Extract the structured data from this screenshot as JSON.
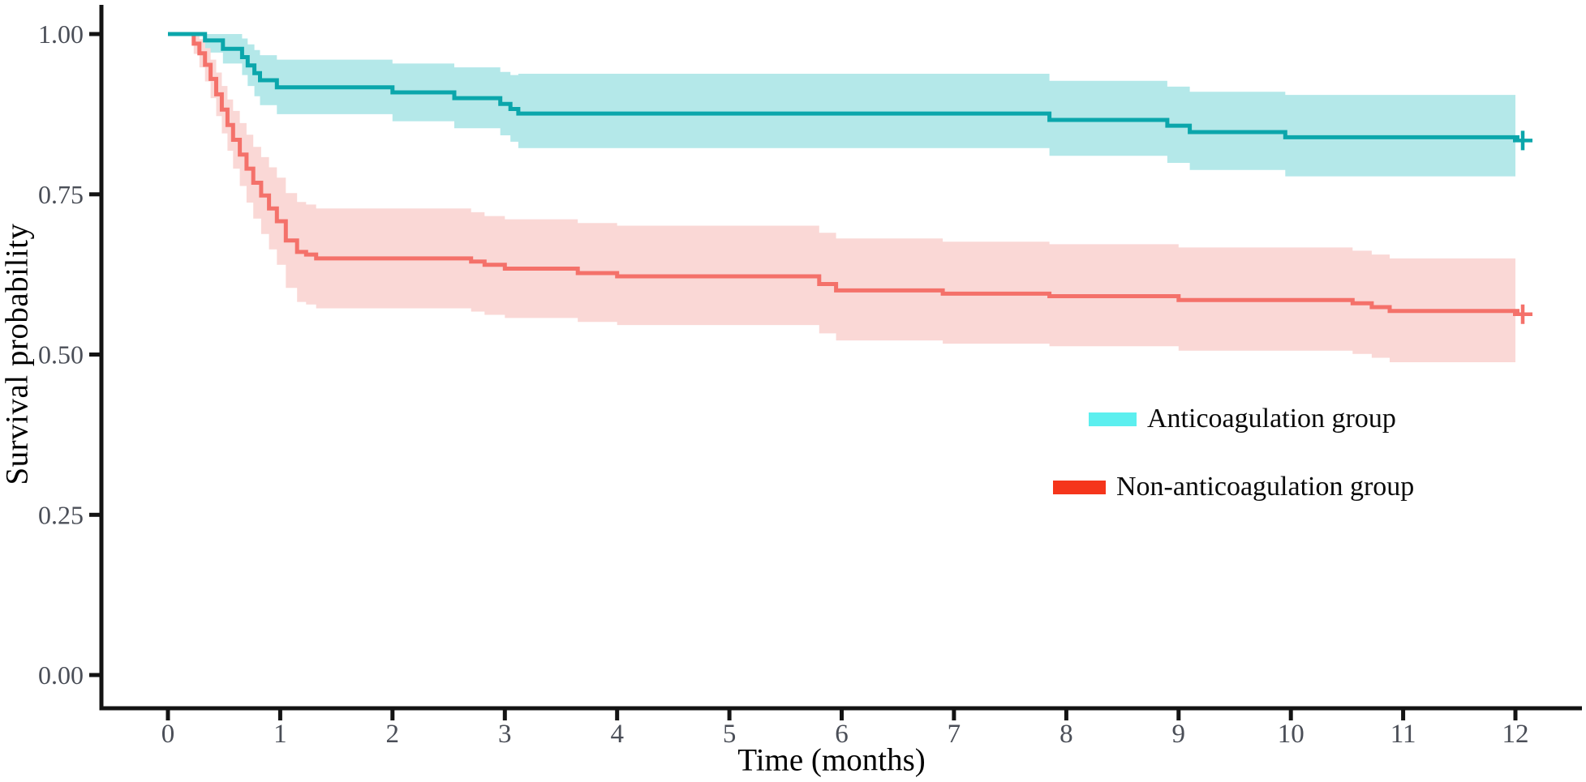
{
  "chart_data": {
    "type": "line",
    "subtype": "kaplan_meier_step_with_confidence_bands",
    "title": "",
    "xlabel": "Time  (months)",
    "ylabel": "Survival probability",
    "xlim": [
      0,
      12
    ],
    "ylim": [
      0,
      1
    ],
    "grid": false,
    "x_axis": {
      "title": "Time  (months)",
      "ticks": [
        {
          "value": 0,
          "label": "0"
        },
        {
          "value": 1,
          "label": "1"
        },
        {
          "value": 2,
          "label": "2"
        },
        {
          "value": 3,
          "label": "3"
        },
        {
          "value": 4,
          "label": "4"
        },
        {
          "value": 5,
          "label": "5"
        },
        {
          "value": 6,
          "label": "6"
        },
        {
          "value": 7,
          "label": "7"
        },
        {
          "value": 8,
          "label": "8"
        },
        {
          "value": 9,
          "label": "9"
        },
        {
          "value": 10,
          "label": "10"
        },
        {
          "value": 11,
          "label": "11"
        },
        {
          "value": 12,
          "label": "12"
        }
      ]
    },
    "y_axis": {
      "title": "Survival probability",
      "ticks": [
        {
          "value": 1.0,
          "label": "1.00"
        },
        {
          "value": 0.75,
          "label": "0.75"
        },
        {
          "value": 0.5,
          "label": "0.50"
        },
        {
          "value": 0.25,
          "label": "0.25"
        },
        {
          "value": 0.0,
          "label": "0.00"
        }
      ]
    },
    "legend": {
      "position": "middle-right",
      "entries": [
        {
          "label": "Anticoagulation group",
          "swatch_color": "#5cefef",
          "series": "anticoagulation"
        },
        {
          "label": "Non-anticoagulation group",
          "swatch_color": "#f5351b",
          "series": "non_anticoagulation"
        }
      ]
    },
    "colors": {
      "axis_line": "#131313",
      "tick_label": "#4a4e57",
      "axis_title": "#000000"
    },
    "points_format": [
      "time_months",
      "survival",
      "ci_lower",
      "ci_upper"
    ],
    "series": [
      {
        "id": "anticoagulation",
        "name": "Anticoagulation group",
        "line_color": "#0ba6ab",
        "band_color": "#b4e8e9",
        "censored_at_end": true,
        "end_survival": 0.84,
        "points": [
          [
            0.0,
            1.0,
            1.0,
            1.0
          ],
          [
            0.33,
            0.99,
            0.971,
            1.0
          ],
          [
            0.49,
            0.977,
            0.954,
            1.0
          ],
          [
            0.66,
            0.964,
            0.936,
            0.993
          ],
          [
            0.71,
            0.951,
            0.919,
            0.984
          ],
          [
            0.77,
            0.939,
            0.903,
            0.975
          ],
          [
            0.82,
            0.928,
            0.889,
            0.967
          ],
          [
            0.97,
            0.917,
            0.875,
            0.96
          ],
          [
            2.0,
            0.909,
            0.864,
            0.954
          ],
          [
            2.55,
            0.9,
            0.853,
            0.948
          ],
          [
            2.96,
            0.891,
            0.842,
            0.941
          ],
          [
            3.05,
            0.883,
            0.832,
            0.936
          ],
          [
            3.12,
            0.876,
            0.822,
            0.938
          ],
          [
            7.85,
            0.866,
            0.81,
            0.927
          ],
          [
            8.9,
            0.857,
            0.799,
            0.918
          ],
          [
            9.1,
            0.847,
            0.788,
            0.91
          ],
          [
            9.95,
            0.839,
            0.778,
            0.905
          ],
          [
            12.0,
            0.839,
            0.778,
            0.905
          ]
        ]
      },
      {
        "id": "non_anticoagulation",
        "name": "Non-anticoagulation group",
        "line_color": "#f4716a",
        "band_color": "#fad8d6",
        "censored_at_end": true,
        "end_survival": 0.57,
        "points": [
          [
            0.0,
            1.0,
            1.0,
            1.0
          ],
          [
            0.19,
            1.0,
            1.0,
            1.0
          ],
          [
            0.23,
            0.985,
            0.969,
            1.0
          ],
          [
            0.28,
            0.97,
            0.948,
            0.992
          ],
          [
            0.33,
            0.952,
            0.926,
            0.978
          ],
          [
            0.38,
            0.93,
            0.9,
            0.96
          ],
          [
            0.43,
            0.906,
            0.872,
            0.94
          ],
          [
            0.48,
            0.882,
            0.845,
            0.919
          ],
          [
            0.53,
            0.858,
            0.818,
            0.898
          ],
          [
            0.58,
            0.835,
            0.79,
            0.88
          ],
          [
            0.64,
            0.812,
            0.763,
            0.861
          ],
          [
            0.7,
            0.79,
            0.737,
            0.843
          ],
          [
            0.76,
            0.768,
            0.712,
            0.824
          ],
          [
            0.83,
            0.748,
            0.688,
            0.808
          ],
          [
            0.9,
            0.728,
            0.664,
            0.792
          ],
          [
            0.97,
            0.708,
            0.64,
            0.776
          ],
          [
            1.05,
            0.678,
            0.604,
            0.752
          ],
          [
            1.15,
            0.66,
            0.582,
            0.738
          ],
          [
            1.23,
            0.656,
            0.578,
            0.734
          ],
          [
            1.32,
            0.65,
            0.572,
            0.728
          ],
          [
            2.7,
            0.645,
            0.567,
            0.722
          ],
          [
            2.82,
            0.64,
            0.562,
            0.716
          ],
          [
            3.0,
            0.634,
            0.557,
            0.711
          ],
          [
            3.65,
            0.627,
            0.551,
            0.705
          ],
          [
            4.0,
            0.622,
            0.546,
            0.701
          ],
          [
            5.8,
            0.61,
            0.533,
            0.69
          ],
          [
            5.95,
            0.6,
            0.522,
            0.681
          ],
          [
            6.9,
            0.595,
            0.517,
            0.676
          ],
          [
            7.85,
            0.591,
            0.513,
            0.672
          ],
          [
            9.0,
            0.585,
            0.506,
            0.667
          ],
          [
            10.55,
            0.58,
            0.501,
            0.662
          ],
          [
            10.72,
            0.574,
            0.495,
            0.656
          ],
          [
            10.88,
            0.568,
            0.488,
            0.65
          ],
          [
            12.0,
            0.568,
            0.488,
            0.65
          ]
        ]
      }
    ]
  }
}
